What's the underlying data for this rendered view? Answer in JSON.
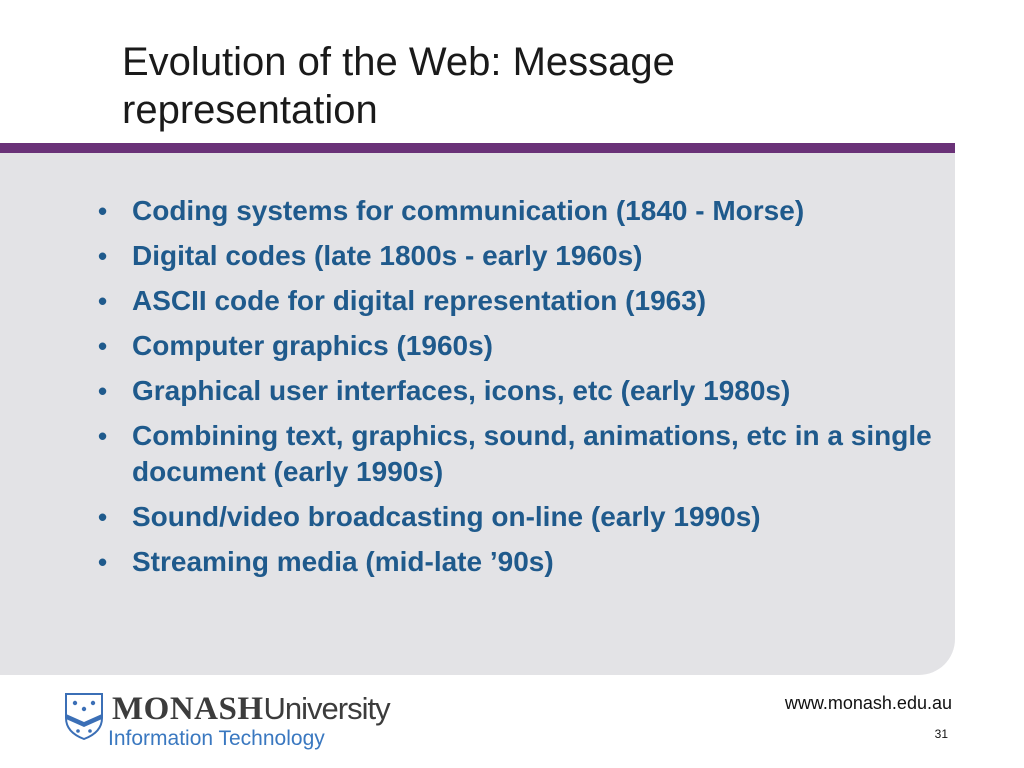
{
  "slide": {
    "title_lines": [
      "Evolution of the Web: Message",
      "representation"
    ],
    "bullets": [
      "Coding systems for communication (1840 - Morse)",
      "Digital codes (late 1800s - early 1960s)",
      "ASCII code for digital representation (1963)",
      "Computer graphics (1960s)",
      "Graphical user interfaces, icons, etc (early 1980s)",
      "Combining text, graphics, sound, animations, etc in a single document (early 1990s)",
      "Sound/video broadcasting on-line (early 1990s)",
      "Streaming media (mid-late ’90s)"
    ],
    "bullet_marker": "•"
  },
  "footer": {
    "brand_name": "MONASH",
    "brand_university": "University",
    "brand_faculty": "Information Technology",
    "url": "www.monash.edu.au",
    "page_number": "31"
  },
  "colors": {
    "accent_bar": "#6a3278",
    "panel_background": "#e3e3e6",
    "bullet_text": "#1f5a8c",
    "brand_dark": "#3c3c3c",
    "brand_blue": "#3a78c0",
    "crest_blue": "#3b6fb6"
  },
  "icons": {
    "crest": "monash-crest-icon"
  }
}
